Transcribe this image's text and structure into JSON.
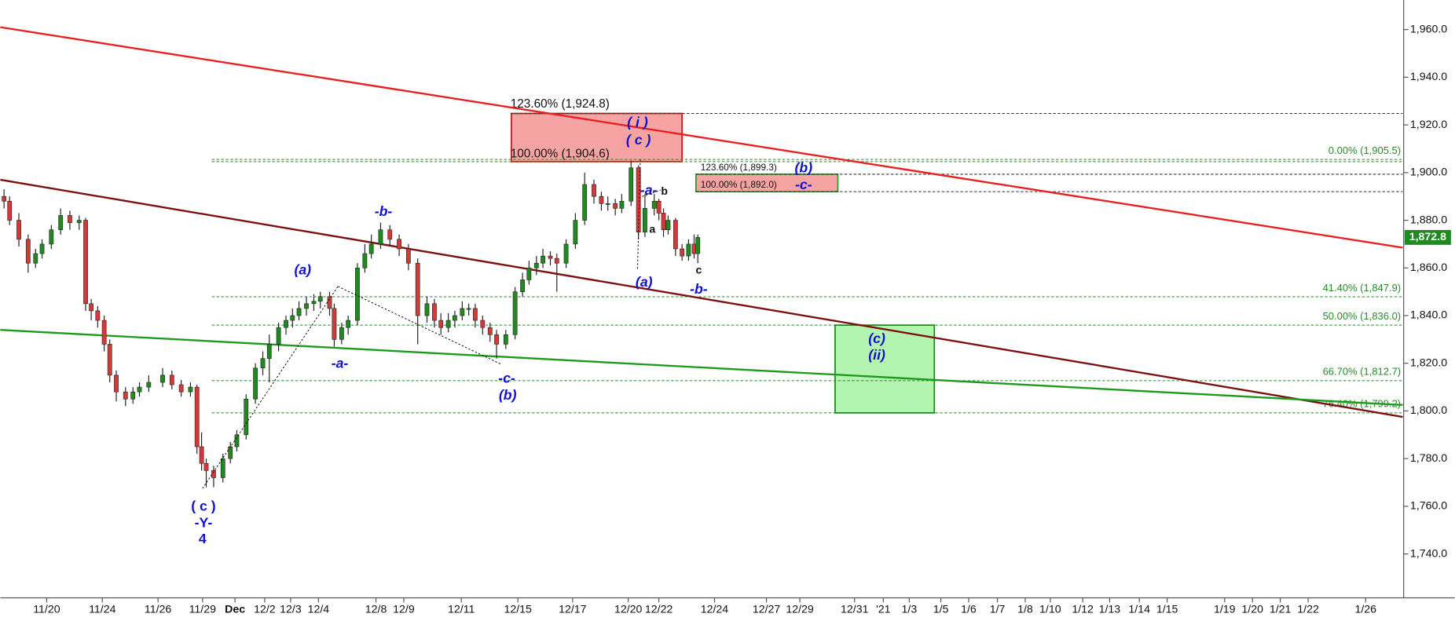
{
  "chart_data": {
    "type": "candlestick",
    "x": [
      0.4,
      1,
      2,
      3,
      3.8,
      4.5,
      5.5,
      6.5,
      7.5,
      8.5,
      9.2,
      9.8,
      10.5,
      11.2,
      11.8,
      12.5,
      13.5,
      14.3,
      15,
      16,
      17.5,
      18.5,
      19.5,
      20.5,
      21.2,
      21.7,
      22.2,
      23,
      24,
      24.8,
      25.5,
      26.5,
      27.5,
      28.3,
      29,
      30,
      30.8,
      31.5,
      32.2,
      33,
      33.8,
      34.5,
      35.5,
      36,
      36.8,
      37.5,
      38.5,
      39.3,
      40,
      41,
      42,
      43,
      44,
      45,
      46,
      46.8,
      47.5,
      48.3,
      49,
      49.8,
      50.5,
      51.2,
      52,
      52.8,
      53.5,
      54.5,
      55.5,
      56.3,
      57,
      57.8,
      58.5,
      59.3,
      60,
      61,
      62,
      63,
      64,
      64.8,
      65.5,
      66.3,
      67,
      68,
      68.8,
      69.5,
      70.5,
      71,
      71.5,
      72,
      72.8,
      73.5,
      74.2,
      74.8,
      75.2
    ],
    "open": [
      1890,
      1888,
      1880,
      1872,
      1862,
      1866,
      1870,
      1876,
      1882,
      1879,
      1880,
      1845,
      1842,
      1838,
      1828,
      1815,
      1808,
      1805,
      1808,
      1810,
      1812,
      1815,
      1811,
      1808,
      1810,
      1785,
      1778,
      1775,
      1772,
      1780,
      1785,
      1790,
      1805,
      1818,
      1822,
      1828,
      1835,
      1838,
      1840,
      1843,
      1845,
      1846,
      1848,
      1843,
      1830,
      1835,
      1838,
      1860,
      1866,
      1870,
      1876,
      1872,
      1868,
      1862,
      1840,
      1845,
      1838,
      1835,
      1838,
      1840,
      1843,
      1843,
      1838,
      1835,
      1832,
      1828,
      1832,
      1850,
      1855,
      1860,
      1862,
      1865,
      1864,
      1862,
      1870,
      1880,
      1895,
      1890,
      1887,
      1887,
      1885,
      1888,
      1902,
      1875,
      1885,
      1888,
      1883,
      1876,
      1880,
      1868,
      1865,
      1870,
      1866
    ],
    "close": [
      1888,
      1880,
      1872,
      1862,
      1866,
      1870,
      1876,
      1882,
      1879,
      1880,
      1845,
      1842,
      1838,
      1828,
      1815,
      1808,
      1805,
      1808,
      1810,
      1812,
      1815,
      1811,
      1808,
      1810,
      1785,
      1778,
      1775,
      1772,
      1780,
      1785,
      1790,
      1805,
      1818,
      1822,
      1828,
      1835,
      1838,
      1840,
      1843,
      1845,
      1846,
      1848,
      1843,
      1830,
      1835,
      1838,
      1860,
      1866,
      1870,
      1876,
      1872,
      1868,
      1862,
      1840,
      1845,
      1838,
      1835,
      1838,
      1840,
      1843,
      1843,
      1838,
      1835,
      1832,
      1828,
      1832,
      1850,
      1855,
      1860,
      1862,
      1865,
      1864,
      1862,
      1870,
      1880,
      1895,
      1890,
      1887,
      1887,
      1885,
      1888,
      1902,
      1875,
      1885,
      1888,
      1883,
      1876,
      1880,
      1868,
      1865,
      1870,
      1866,
      1872.8
    ],
    "high": [
      1893,
      1890,
      1883,
      1874,
      1868,
      1872,
      1878,
      1885,
      1884,
      1882,
      1881,
      1847,
      1844,
      1840,
      1830,
      1817,
      1810,
      1810,
      1812,
      1815,
      1818,
      1817,
      1813,
      1812,
      1811,
      1791,
      1780,
      1777,
      1782,
      1787,
      1792,
      1807,
      1820,
      1825,
      1832,
      1837,
      1840,
      1843,
      1846,
      1848,
      1849,
      1850,
      1850,
      1845,
      1837,
      1840,
      1862,
      1870,
      1874,
      1879,
      1878,
      1874,
      1870,
      1864,
      1848,
      1847,
      1841,
      1841,
      1842,
      1846,
      1845,
      1845,
      1840,
      1837,
      1834,
      1834,
      1852,
      1858,
      1863,
      1865,
      1868,
      1867,
      1866,
      1872,
      1883,
      1900,
      1897,
      1892,
      1890,
      1889,
      1891,
      1905,
      1903,
      1891,
      1891,
      1889,
      1885,
      1882,
      1881,
      1870,
      1872,
      1874,
      1874
    ],
    "low": [
      1885,
      1878,
      1869,
      1858,
      1860,
      1864,
      1868,
      1874,
      1876,
      1876,
      1842,
      1838,
      1835,
      1825,
      1812,
      1804,
      1802,
      1803,
      1806,
      1808,
      1810,
      1809,
      1806,
      1806,
      1782,
      1775,
      1768,
      1768,
      1770,
      1778,
      1783,
      1788,
      1803,
      1815,
      1812,
      1825,
      1832,
      1835,
      1838,
      1840,
      1842,
      1843,
      1840,
      1827,
      1828,
      1832,
      1836,
      1858,
      1864,
      1868,
      1869,
      1865,
      1859,
      1828,
      1837,
      1835,
      1832,
      1833,
      1835,
      1838,
      1840,
      1835,
      1832,
      1829,
      1822,
      1826,
      1830,
      1848,
      1853,
      1857,
      1860,
      1861,
      1850,
      1860,
      1868,
      1878,
      1887,
      1884,
      1884,
      1882,
      1883,
      1886,
      1872,
      1873,
      1882,
      1880,
      1873,
      1874,
      1865,
      1863,
      1863,
      1864,
      1862
    ],
    "up_color": "#1f8a1f",
    "down_color": "#d23a3a",
    "xlim": [
      0,
      151.2
    ],
    "ylim": [
      1721.6,
      1972.4
    ],
    "yticks": [
      {
        "value": 1740,
        "label": "1,740.0"
      },
      {
        "value": 1760,
        "label": "1,760.0"
      },
      {
        "value": 1780,
        "label": "1,780.0"
      },
      {
        "value": 1800,
        "label": "1,800.0"
      },
      {
        "value": 1820,
        "label": "1,820.0"
      },
      {
        "value": 1840,
        "label": "1,840.0"
      },
      {
        "value": 1860,
        "label": "1,860.0"
      },
      {
        "value": 1880,
        "label": "1,880.0"
      },
      {
        "value": 1900,
        "label": "1,900.0"
      },
      {
        "value": 1920,
        "label": "1,920.0"
      },
      {
        "value": 1940,
        "label": "1,940.0"
      },
      {
        "value": 1960,
        "label": "1,960.0"
      }
    ],
    "xticks": [
      {
        "value": 5,
        "label": "11/20"
      },
      {
        "value": 11,
        "label": "11/24"
      },
      {
        "value": 17,
        "label": "11/26"
      },
      {
        "value": 21.8,
        "label": "11/29"
      },
      {
        "value": 25.3,
        "label": "Dec"
      },
      {
        "value": 28.5,
        "label": "12/2"
      },
      {
        "value": 31.3,
        "label": "12/3"
      },
      {
        "value": 34.3,
        "label": "12/4"
      },
      {
        "value": 40.5,
        "label": "12/8"
      },
      {
        "value": 43.5,
        "label": "12/9"
      },
      {
        "value": 49.7,
        "label": "12/11"
      },
      {
        "value": 55.8,
        "label": "12/15"
      },
      {
        "value": 61.7,
        "label": "12/17"
      },
      {
        "value": 67.7,
        "label": "12/20"
      },
      {
        "value": 71,
        "label": "12/22"
      },
      {
        "value": 77,
        "label": "12/24"
      },
      {
        "value": 82.6,
        "label": "12/27"
      },
      {
        "value": 86.2,
        "label": "12/29"
      },
      {
        "value": 92.1,
        "label": "12/31"
      },
      {
        "value": 95.2,
        "label": "'21"
      },
      {
        "value": 98,
        "label": "1/3"
      },
      {
        "value": 101.4,
        "label": "1/5"
      },
      {
        "value": 104.4,
        "label": "1/6"
      },
      {
        "value": 107.5,
        "label": "1/7"
      },
      {
        "value": 110.5,
        "label": "1/8"
      },
      {
        "value": 113.2,
        "label": "1/10"
      },
      {
        "value": 116.7,
        "label": "1/12"
      },
      {
        "value": 119.6,
        "label": "1/13"
      },
      {
        "value": 122.8,
        "label": "1/14"
      },
      {
        "value": 125.8,
        "label": "1/15"
      },
      {
        "value": 132,
        "label": "1/19"
      },
      {
        "value": 135,
        "label": "1/20"
      },
      {
        "value": 138,
        "label": "1/21"
      },
      {
        "value": 141,
        "label": "1/22"
      },
      {
        "value": 147.2,
        "label": "1/26"
      }
    ],
    "trendlines": [
      {
        "x": [
          0,
          151.2
        ],
        "y": [
          1961,
          1868.5
        ],
        "color": "#e8201f"
      },
      {
        "x": [
          0,
          151.2
        ],
        "y": [
          1897,
          1797.5
        ],
        "color": "#7a1010"
      },
      {
        "x": [
          0,
          151.2
        ],
        "y": [
          1834,
          1802.5
        ],
        "color": "#1c9a1c"
      }
    ],
    "boxes": [
      {
        "x": [
          55.1,
          73.5
        ],
        "y": [
          1904.6,
          1924.8
        ],
        "fill": "#f5a3a3",
        "stroke": "#d01818"
      },
      {
        "x": [
          75,
          90.3
        ],
        "y": [
          1892.0,
          1899.3
        ],
        "fill": "#f5a3a3",
        "stroke": "#2a9a2a"
      },
      {
        "x": [
          90,
          100.7
        ],
        "y": [
          1799.2,
          1836.0
        ],
        "fill": "#b3f5b0",
        "stroke": "#1a8a1a"
      }
    ],
    "fib_levels": [
      {
        "label": "123.60% (1,924.8)",
        "value": 1924.8,
        "color": "#333333"
      },
      {
        "label": "100.00% (1,904.6)",
        "value": 1904.6,
        "color": "#2a8a2a"
      },
      {
        "label": "0.00% (1,905.5)",
        "value": 1905.5,
        "color": "#2a8a2a"
      },
      {
        "label": "123.60% (1,899.3)",
        "value": 1899.3,
        "color": "#333333"
      },
      {
        "label": "100.00% (1,892.0)",
        "value": 1892.0,
        "color": "#333333"
      },
      {
        "label": "41.40% (1,847.9)",
        "value": 1847.9,
        "color": "#2a8a2a"
      },
      {
        "label": "50.00% (1,836.0)",
        "value": 1836.0,
        "color": "#2a8a2a"
      },
      {
        "label": "66.70% (1,812.7)",
        "value": 1812.7,
        "color": "#2a8a2a"
      },
      {
        "label": "76.40% (1,799.2)",
        "value": 1799.2,
        "color": "#2a8a2a"
      }
    ],
    "wave_labels": [
      "( c )",
      "-Y-",
      "4",
      "(a)",
      "-a-",
      "-b-",
      "-c-",
      "(b)",
      "( i )",
      "( c )",
      "-a-",
      "b",
      "a",
      "(a)",
      "c",
      "-b-",
      "(b)",
      "-c-",
      "(c)",
      "(ii)"
    ],
    "last_price": {
      "value": 1872.8,
      "label": "1,872.8",
      "color": "#1f8a1f"
    }
  }
}
